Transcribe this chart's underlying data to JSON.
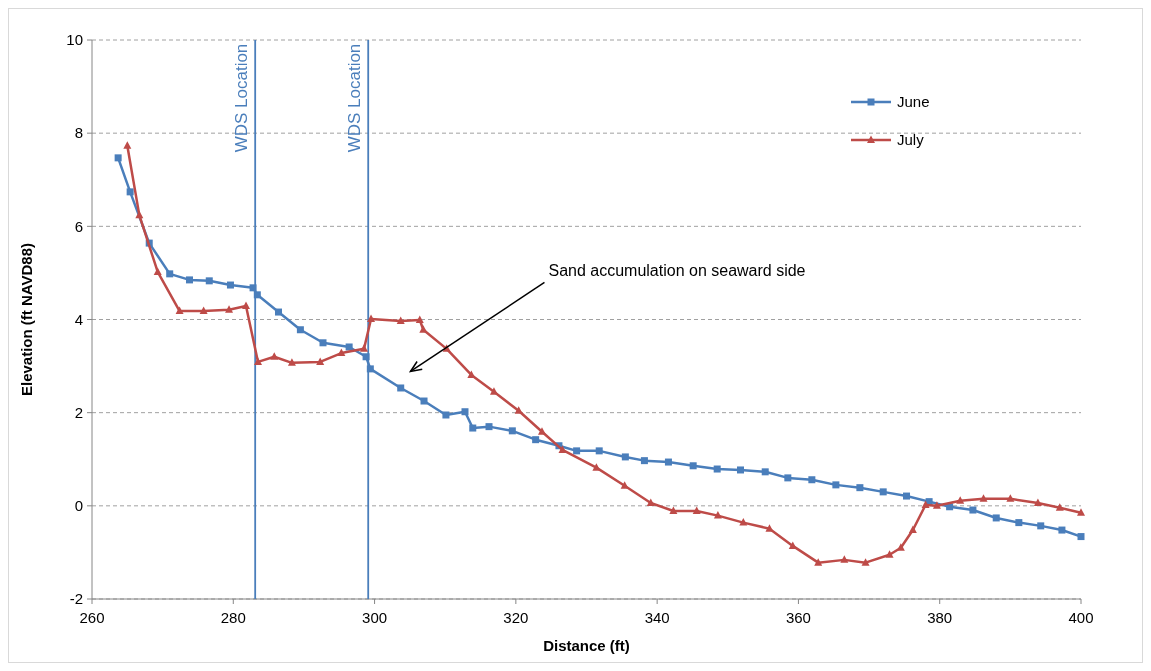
{
  "chart_data": {
    "type": "line",
    "xlabel": "Distance (ft)",
    "ylabel": "Elevation (ft NAVD88)",
    "xlim": [
      260,
      400
    ],
    "xticks": [
      260,
      280,
      300,
      320,
      340,
      360,
      380,
      400
    ],
    "ylim": [
      -2,
      10
    ],
    "yticks": [
      -2,
      0,
      2,
      4,
      6,
      8,
      10
    ],
    "grid": "y",
    "legend": "top right",
    "series": [
      {
        "name": "June",
        "color": "#4a7ebb",
        "marker": "square",
        "x": [
          263.7,
          265.4,
          268.1,
          271.0,
          273.8,
          276.6,
          279.6,
          282.8,
          283.4,
          286.4,
          289.5,
          292.7,
          296.4,
          298.8,
          299.4,
          303.7,
          307.0,
          310.1,
          312.8,
          313.9,
          316.2,
          319.5,
          322.8,
          326.1,
          328.6,
          331.8,
          335.5,
          338.2,
          341.6,
          345.1,
          348.5,
          351.8,
          355.3,
          358.5,
          361.9,
          365.3,
          368.7,
          372.0,
          375.3,
          378.5,
          381.4,
          384.7,
          388.0,
          391.2,
          394.3,
          397.3,
          400
        ],
        "values": [
          7.47,
          6.74,
          5.64,
          4.98,
          4.85,
          4.83,
          4.74,
          4.68,
          4.53,
          4.16,
          3.78,
          3.5,
          3.41,
          3.2,
          2.94,
          2.53,
          2.25,
          1.95,
          2.02,
          1.67,
          1.7,
          1.61,
          1.42,
          1.29,
          1.18,
          1.18,
          1.05,
          0.97,
          0.94,
          0.86,
          0.79,
          0.77,
          0.73,
          0.6,
          0.56,
          0.45,
          0.39,
          0.3,
          0.21,
          0.09,
          -0.02,
          -0.09,
          -0.26,
          -0.36,
          -0.43,
          -0.52,
          -0.66
        ]
      },
      {
        "name": "July",
        "color": "#be4b48",
        "marker": "triangle",
        "x": [
          265.0,
          266.7,
          269.3,
          272.4,
          275.8,
          279.4,
          281.8,
          283.5,
          285.8,
          288.3,
          292.3,
          295.3,
          298.5,
          299.5,
          303.7,
          306.4,
          306.9,
          310.2,
          313.7,
          316.9,
          320.4,
          323.7,
          326.6,
          331.4,
          335.4,
          339.1,
          342.3,
          345.6,
          348.6,
          352.2,
          355.9,
          359.2,
          362.8,
          366.5,
          369.5,
          372.9,
          374.5,
          376.2,
          378.0,
          379.6,
          382.9,
          386.2,
          390.0,
          393.9,
          397.0,
          400
        ],
        "values": [
          7.73,
          6.24,
          5.02,
          4.18,
          4.18,
          4.21,
          4.29,
          3.09,
          3.2,
          3.07,
          3.09,
          3.28,
          3.37,
          4.01,
          3.97,
          3.99,
          3.78,
          3.37,
          2.81,
          2.45,
          2.04,
          1.59,
          1.2,
          0.82,
          0.43,
          0.06,
          -0.11,
          -0.11,
          -0.21,
          -0.36,
          -0.49,
          -0.86,
          -1.22,
          -1.16,
          -1.22,
          -1.05,
          -0.9,
          -0.52,
          0.02,
          0.0,
          0.11,
          0.15,
          0.15,
          0.06,
          -0.04,
          -0.15
        ]
      }
    ],
    "ref_lines": [
      {
        "axis": "x",
        "value": 283.1,
        "label": "WDS Location",
        "color": "#4a7ebb"
      },
      {
        "axis": "x",
        "value": 299.1,
        "label": "WDS Location",
        "color": "#4a7ebb"
      }
    ],
    "annotations": [
      "Sand accumulation on seaward side"
    ]
  }
}
